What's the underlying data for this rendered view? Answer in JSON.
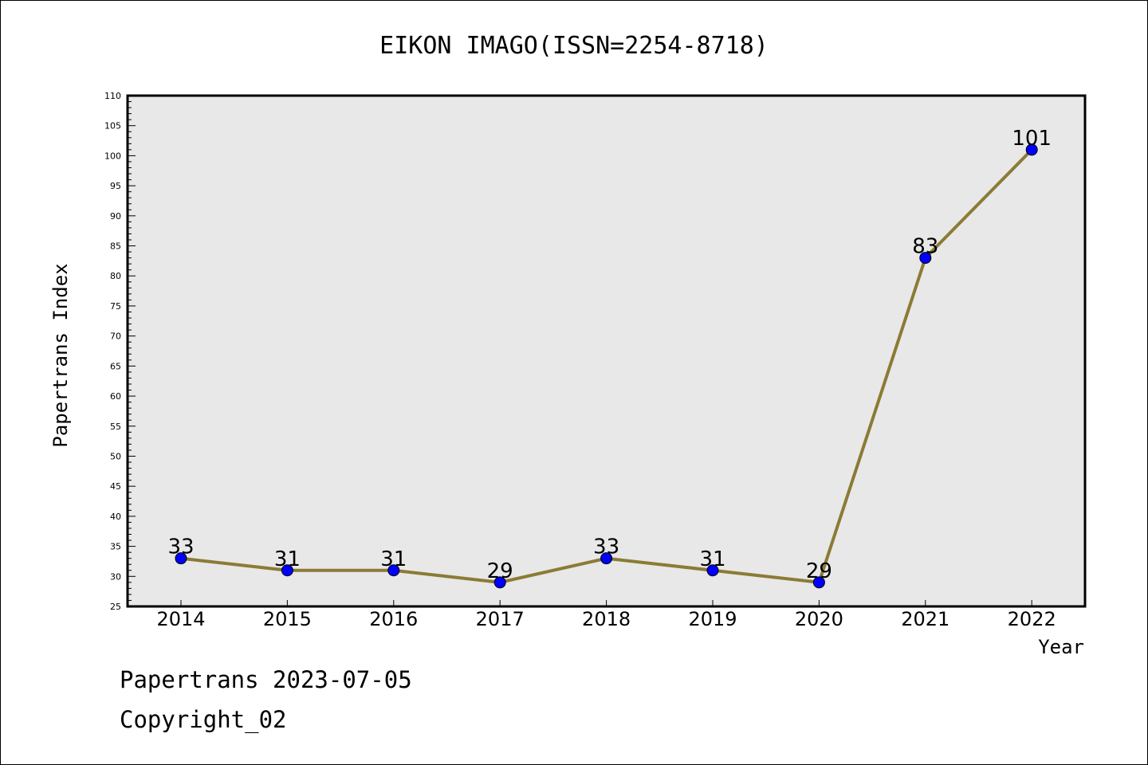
{
  "chart_data": {
    "type": "line",
    "title": "EIKON IMAGO(ISSN=2254-8718)",
    "xlabel": "Year",
    "ylabel": "Papertrans Index",
    "categories": [
      "2014",
      "2015",
      "2016",
      "2017",
      "2018",
      "2019",
      "2020",
      "2021",
      "2022"
    ],
    "series": [
      {
        "values": [
          33,
          31,
          31,
          29,
          33,
          31,
          29,
          83,
          101
        ]
      }
    ],
    "ylim": [
      25,
      110
    ],
    "ytick_step": 5,
    "grid": false,
    "data_labels": true,
    "colors": {
      "line": "#8b7b35",
      "marker": "#0000ff",
      "plot_background": "#e8e8e8"
    }
  },
  "footer": {
    "line1": "Papertrans 2023-07-05",
    "line2": "Copyright_02"
  }
}
